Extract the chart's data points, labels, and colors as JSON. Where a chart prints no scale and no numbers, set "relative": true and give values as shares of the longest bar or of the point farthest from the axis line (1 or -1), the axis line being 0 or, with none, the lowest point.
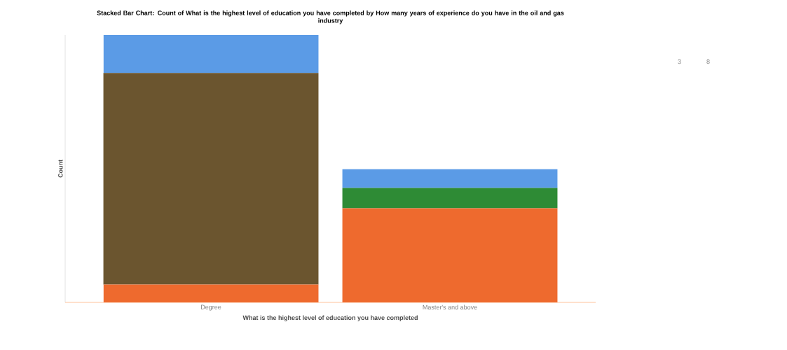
{
  "chart_data": {
    "type": "bar",
    "stacked": true,
    "relative": true,
    "title": "Stacked Bar Chart: Count of What is the highest level of education you have completed by How many years of experience do you have in the oil and gas industry",
    "xlabel": "What is the highest level of education you have completed",
    "ylabel": "Count",
    "categories": [
      "Degree",
      "Master's and above"
    ],
    "series": [
      {
        "color": "#ee6a2e",
        "values": [
          0.067,
          0.352
        ]
      },
      {
        "color": "#6b552f",
        "values": [
          0.791,
          0
        ]
      },
      {
        "color": "#2e8b35",
        "values": [
          0,
          0.076
        ]
      },
      {
        "color": "#5b9be6",
        "values": [
          0.142,
          0.07
        ]
      }
    ],
    "annotations": [
      "3",
      "8"
    ]
  }
}
